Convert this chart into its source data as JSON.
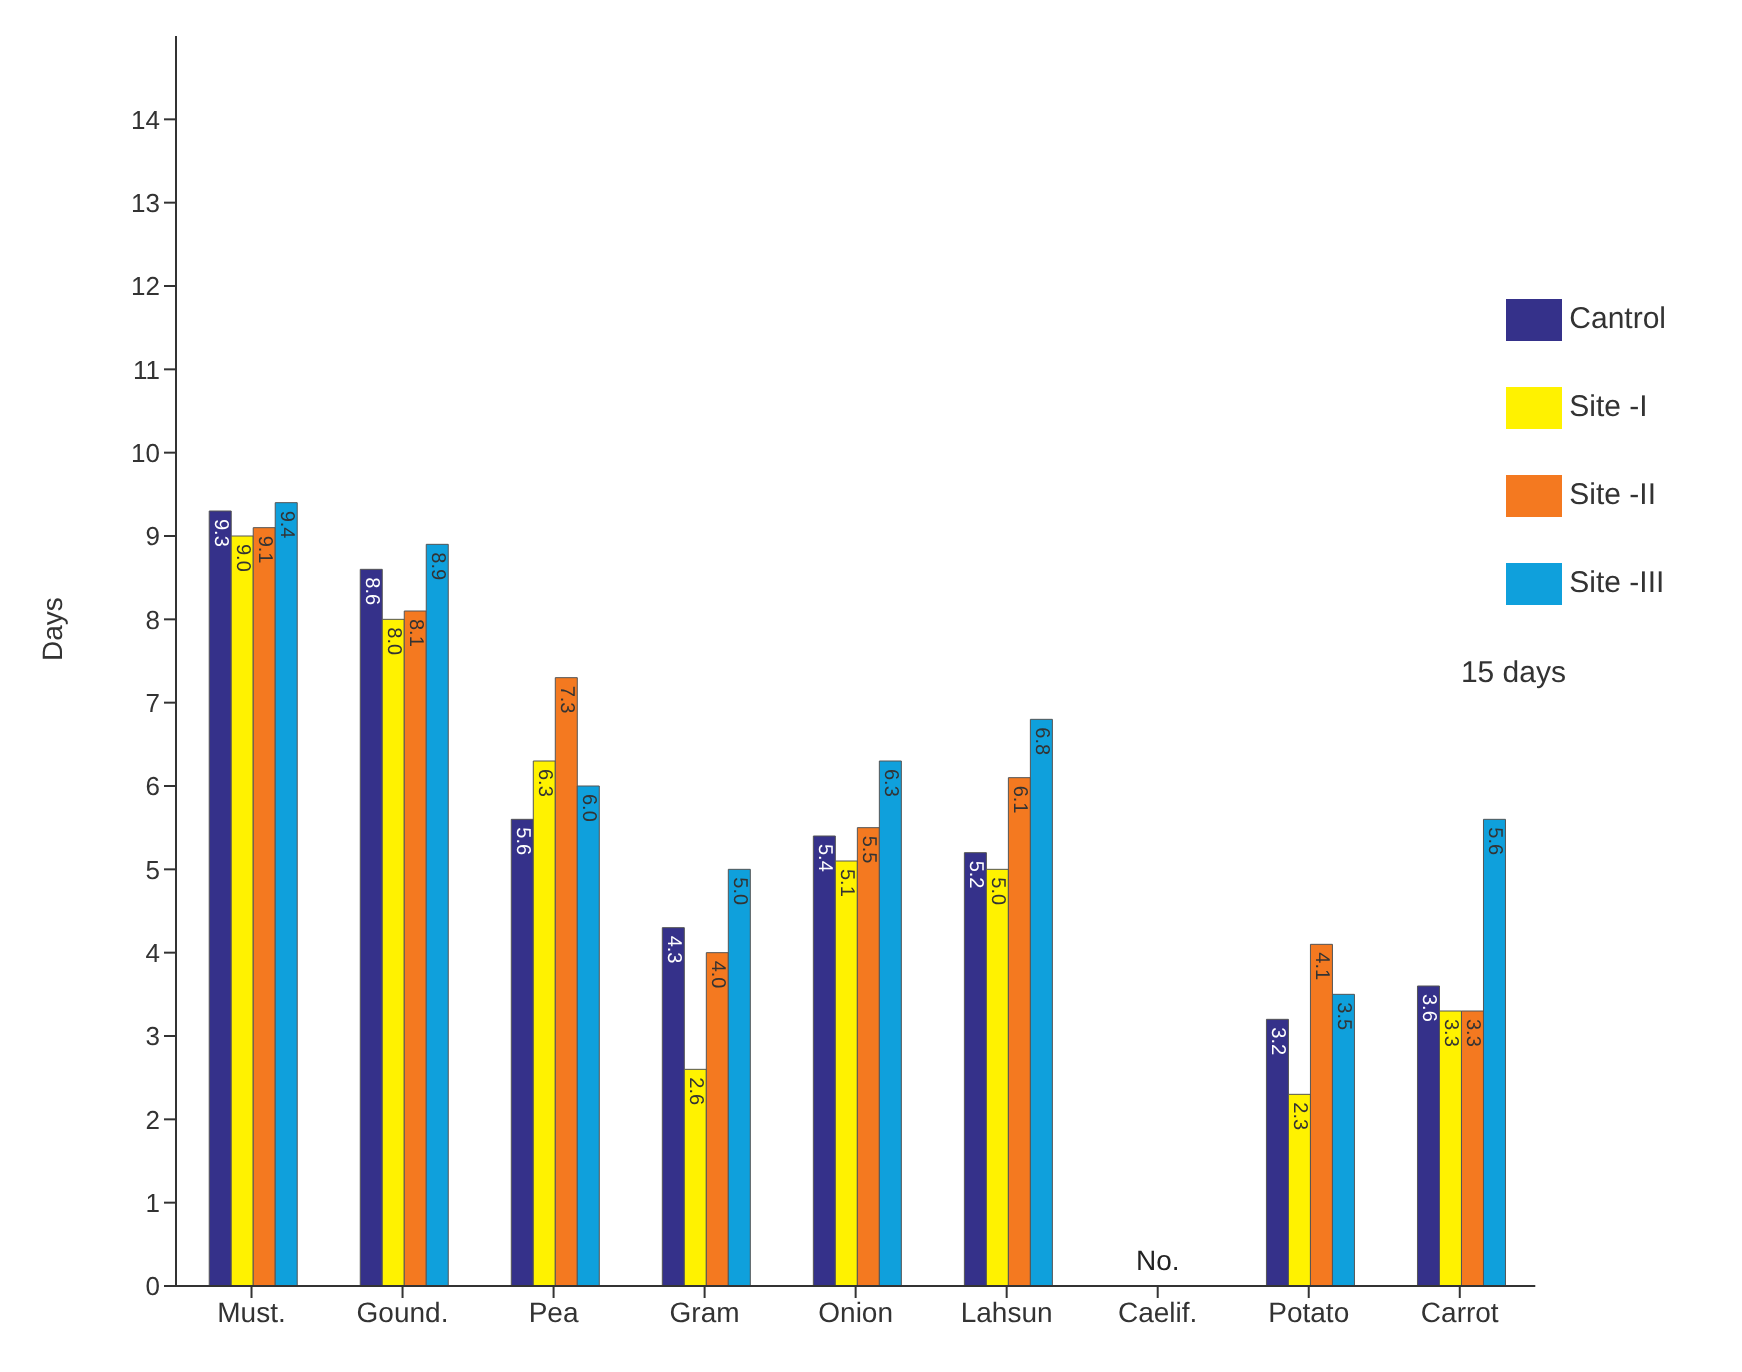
{
  "chart_data": {
    "type": "bar",
    "ylabel": "Days",
    "legend_title": "15 days",
    "categories": [
      "Must.",
      "Gound.",
      "Pea",
      "Gram",
      "Onion",
      "Lahsun",
      "Caelif.",
      "Potato",
      "Carrot"
    ],
    "series": [
      {
        "name": "Cantrol",
        "color": "#35318a",
        "values": [
          9.3,
          8.6,
          5.6,
          4.3,
          5.4,
          5.2,
          null,
          3.2,
          3.6
        ],
        "value_labels": [
          "9.3",
          "8.6",
          "5.6",
          "4.3",
          "5.4",
          "5.2",
          null,
          "3.2",
          "3.6"
        ]
      },
      {
        "name": "Site -I",
        "color": "#fff200",
        "values": [
          9.0,
          8.0,
          6.3,
          2.6,
          5.1,
          5.0,
          null,
          2.3,
          3.3
        ],
        "value_labels": [
          "9.0",
          "8.0",
          "6.3",
          "2.6",
          "5.1",
          "5.0",
          null,
          "2.3",
          "3.3"
        ]
      },
      {
        "name": "Site -II",
        "color": "#f47920",
        "values": [
          9.1,
          8.1,
          7.3,
          4.0,
          5.5,
          6.1,
          null,
          4.1,
          3.3
        ],
        "value_labels": [
          "9.1",
          "8.1",
          "7.3",
          "4.0",
          "5.5",
          "6.1",
          null,
          "4.1",
          "3.3"
        ]
      },
      {
        "name": "Site -III",
        "color": "#0fa0dc",
        "values": [
          9.4,
          8.9,
          6.0,
          5.0,
          6.3,
          6.8,
          null,
          3.5,
          5.6
        ],
        "value_labels": [
          "9.4",
          "8.9",
          "6.0",
          "5.0",
          "6.3",
          "6.8",
          null,
          "3.5",
          "5.6"
        ]
      }
    ],
    "ylim": [
      0,
      15
    ],
    "yticks": [
      0,
      1,
      2,
      3,
      4,
      5,
      6,
      7,
      8,
      9,
      10,
      11,
      12,
      13,
      14
    ],
    "legend": "top right",
    "grid": false,
    "annotations": [
      "No."
    ]
  }
}
